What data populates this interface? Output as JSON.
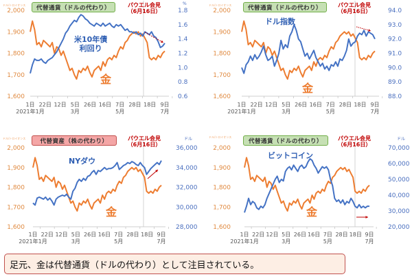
{
  "chart_data": [
    {
      "type": "line",
      "id": "gold-vs-us10y",
      "tag": "代替通貨（ドルの代わり）",
      "tag_color": "green",
      "annotation": "パウエル会見（6月16日）",
      "annotation_lines": [
        "パウエル会見",
        "（6月16日）"
      ],
      "left_unit": "ドル/トロイオンス",
      "right_unit": "%",
      "left_axis": {
        "ticks": [
          "2,000",
          "1,900",
          "1,800",
          "1,700",
          "1,600"
        ],
        "min": 1600,
        "max": 2000
      },
      "right_axis": {
        "ticks": [
          "1.8",
          "1.6",
          "1.4",
          "1.2",
          "1.0",
          "0.8",
          "0.6"
        ],
        "min": 0.6,
        "max": 1.8
      },
      "x_ticks": [
        "1日",
        "22日",
        "12日",
        "5日",
        "26日",
        "16日",
        "7日",
        "28日",
        "18日",
        "9日"
      ],
      "x_months": [
        {
          "label": "2021年1月",
          "at": 0
        },
        {
          "label": "3月",
          "at": 3
        },
        {
          "label": "5月",
          "at": 6
        },
        {
          "label": "7月",
          "at": 9
        }
      ],
      "series": [
        {
          "name": "金",
          "axis": "left",
          "color": "#ed7d31",
          "values": [
            1900,
            1950,
            1910,
            1840,
            1850,
            1830,
            1860,
            1850,
            1840,
            1830,
            1850,
            1800,
            1830,
            1820,
            1790,
            1810,
            1780,
            1750,
            1720,
            1730,
            1700,
            1680,
            1720,
            1710,
            1730,
            1720,
            1740,
            1710,
            1690,
            1720,
            1730,
            1740,
            1720,
            1760,
            1740,
            1770,
            1780,
            1770,
            1790,
            1780,
            1810,
            1830,
            1820,
            1850,
            1860,
            1880,
            1890,
            1900,
            1890,
            1900,
            1880,
            1890,
            1870,
            1850,
            1780,
            1770,
            1780,
            1770,
            1790,
            1780,
            1800,
            1810
          ]
        },
        {
          "name": "米10年債利回り",
          "axis": "right",
          "color": "#4472c4",
          "values": [
            0.92,
            1.04,
            1.12,
            1.1,
            1.1,
            1.12,
            1.08,
            1.06,
            1.1,
            1.12,
            1.14,
            1.18,
            1.22,
            1.28,
            1.34,
            1.4,
            1.48,
            1.52,
            1.58,
            1.62,
            1.66,
            1.64,
            1.7,
            1.74,
            1.72,
            1.68,
            1.66,
            1.62,
            1.6,
            1.58,
            1.62,
            1.6,
            1.58,
            1.62,
            1.58,
            1.6,
            1.62,
            1.58,
            1.56,
            1.6,
            1.58,
            1.6,
            1.56,
            1.52,
            1.54,
            1.5,
            1.5,
            1.48,
            1.5,
            1.46,
            1.48,
            1.44,
            1.5,
            1.48,
            1.46,
            1.5,
            1.44,
            1.42,
            1.36,
            1.28,
            1.3,
            1.34
          ]
        }
      ],
      "series_labels": {
        "blue": "米10年債\n利回り",
        "gold": "金"
      },
      "arrow": "down"
    },
    {
      "type": "line",
      "id": "gold-vs-dollar-index",
      "tag": "代替通貨（ドルの代わり）",
      "tag_color": "green",
      "annotation_lines": [
        "パウエル会見",
        "（6月16日）"
      ],
      "left_unit": "ドル/トロイオンス",
      "right_unit": "",
      "left_axis": {
        "ticks": [
          "2,000",
          "1,900",
          "1,800",
          "1,700",
          "1,600"
        ],
        "min": 1600,
        "max": 2000
      },
      "right_axis": {
        "ticks": [
          "94.0",
          "93.0",
          "92.0",
          "91.0",
          "90.0",
          "89.0",
          "88.0"
        ],
        "min": 88,
        "max": 94
      },
      "x_ticks": [
        "1日",
        "22日",
        "12日",
        "5日",
        "26日",
        "16日",
        "7日",
        "28日",
        "18日",
        "9日"
      ],
      "x_months": [
        {
          "label": "2021年1月",
          "at": 0
        },
        {
          "label": "3月",
          "at": 3
        },
        {
          "label": "5月",
          "at": 6
        },
        {
          "label": "7月",
          "at": 9
        }
      ],
      "series": [
        {
          "name": "金",
          "axis": "left",
          "color": "#ed7d31",
          "values": [
            1900,
            1950,
            1910,
            1840,
            1850,
            1830,
            1860,
            1850,
            1840,
            1830,
            1850,
            1800,
            1830,
            1820,
            1790,
            1810,
            1780,
            1750,
            1720,
            1730,
            1700,
            1680,
            1720,
            1710,
            1730,
            1720,
            1740,
            1710,
            1690,
            1720,
            1730,
            1740,
            1720,
            1760,
            1740,
            1770,
            1780,
            1770,
            1790,
            1780,
            1810,
            1830,
            1820,
            1850,
            1860,
            1880,
            1890,
            1900,
            1890,
            1900,
            1880,
            1890,
            1870,
            1850,
            1780,
            1770,
            1780,
            1770,
            1790,
            1780,
            1800,
            1810
          ]
        },
        {
          "name": "ドル指数",
          "axis": "right",
          "color": "#4472c4",
          "values": [
            90.0,
            89.6,
            90.2,
            90.4,
            90.8,
            90.5,
            90.9,
            90.6,
            90.8,
            91.1,
            91.5,
            90.9,
            90.5,
            90.6,
            90.8,
            90.1,
            90.5,
            91.0,
            91.9,
            91.3,
            91.6,
            91.4,
            92.2,
            92.5,
            93.0,
            92.6,
            92.0,
            91.8,
            91.3,
            90.8,
            91.0,
            90.6,
            90.9,
            91.2,
            90.7,
            90.4,
            90.1,
            90.3,
            89.9,
            90.1,
            89.8,
            90.2,
            90.1,
            90.4,
            90.1,
            90.6,
            90.5,
            90.8,
            91.2,
            92.0,
            91.5,
            91.7,
            91.8,
            92.2,
            92.4,
            92.3,
            92.6,
            92.2,
            92.5,
            92.4,
            92.3,
            92.0
          ]
        }
      ],
      "series_labels": {
        "blue": "ドル指数",
        "gold": "金"
      },
      "arrow": "flat-down"
    },
    {
      "type": "line",
      "id": "gold-vs-ny-dow",
      "tag": "代替資産（株の代わり）",
      "tag_color": "red",
      "annotation_lines": [
        "パウエル会見",
        "（6月16日）"
      ],
      "left_unit": "ドル/トロイオンス",
      "right_unit": "ドル",
      "left_axis": {
        "ticks": [
          "2,000",
          "1,900",
          "1,800",
          "1,700",
          "1,600"
        ],
        "min": 1600,
        "max": 2000
      },
      "right_axis": {
        "ticks": [
          "36,000",
          "34,000",
          "32,000",
          "30,000",
          "28,000"
        ],
        "min": 28000,
        "max": 36000
      },
      "x_ticks": [
        "1日",
        "22日",
        "12日",
        "5日",
        "26日",
        "16日",
        "7日",
        "28日",
        "18日",
        "9日"
      ],
      "x_months": [
        {
          "label": "2021年1月",
          "at": 0
        },
        {
          "label": "3月",
          "at": 3
        },
        {
          "label": "5月",
          "at": 6
        },
        {
          "label": "7月",
          "at": 9
        }
      ],
      "series": [
        {
          "name": "金",
          "axis": "left",
          "color": "#ed7d31",
          "values": [
            1900,
            1950,
            1910,
            1840,
            1850,
            1830,
            1860,
            1850,
            1840,
            1830,
            1850,
            1800,
            1830,
            1820,
            1790,
            1810,
            1780,
            1750,
            1720,
            1730,
            1700,
            1680,
            1720,
            1710,
            1730,
            1720,
            1740,
            1710,
            1690,
            1720,
            1730,
            1740,
            1720,
            1760,
            1740,
            1770,
            1780,
            1770,
            1790,
            1780,
            1810,
            1830,
            1820,
            1850,
            1860,
            1880,
            1890,
            1900,
            1890,
            1900,
            1880,
            1890,
            1870,
            1850,
            1780,
            1770,
            1780,
            1770,
            1790,
            1780,
            1800,
            1810
          ]
        },
        {
          "name": "NYダウ",
          "axis": "right",
          "color": "#4472c4",
          "values": [
            30400,
            30200,
            30900,
            31000,
            30900,
            30800,
            31000,
            30700,
            30900,
            30600,
            30200,
            30800,
            31000,
            31100,
            31200,
            31100,
            31300,
            31000,
            30800,
            31600,
            31900,
            32500,
            32800,
            32600,
            32900,
            32700,
            33100,
            33200,
            33500,
            33700,
            33300,
            33700,
            33600,
            33800,
            34000,
            33800,
            33900,
            33900,
            34000,
            34200,
            34500,
            33800,
            34000,
            34200,
            34300,
            34500,
            34400,
            34600,
            34500,
            34300,
            34200,
            34500,
            34200,
            34000,
            33300,
            33600,
            33900,
            34100,
            34300,
            34500,
            34300,
            34700
          ]
        }
      ],
      "series_labels": {
        "blue": "NYダウ",
        "gold": "金"
      },
      "arrow": "up"
    },
    {
      "type": "line",
      "id": "gold-vs-bitcoin",
      "tag": "代替通貨（ドルの代わり）",
      "tag_color": "green",
      "annotation_lines": [
        "パウエル会見",
        "（6月16日）"
      ],
      "left_unit": "ドル/トロイオンス",
      "right_unit": "ドル",
      "left_axis": {
        "ticks": [
          "2,000",
          "1,900",
          "1,800",
          "1,700",
          "1,600"
        ],
        "min": 1600,
        "max": 2000
      },
      "right_axis": {
        "ticks": [
          "70,000",
          "60,000",
          "50,000",
          "40,000",
          "30,000",
          "20,000"
        ],
        "min": 20000,
        "max": 70000
      },
      "x_ticks": [
        "1日",
        "22日",
        "12日",
        "5日",
        "26日",
        "16日",
        "7日",
        "28日",
        "18日",
        "9日"
      ],
      "x_months": [
        {
          "label": "2021年1月",
          "at": 0
        },
        {
          "label": "3月",
          "at": 3
        },
        {
          "label": "5月",
          "at": 6
        },
        {
          "label": "7月",
          "at": 9
        }
      ],
      "series": [
        {
          "name": "金",
          "axis": "left",
          "color": "#ed7d31",
          "values": [
            1900,
            1950,
            1910,
            1840,
            1850,
            1830,
            1860,
            1850,
            1840,
            1830,
            1850,
            1800,
            1830,
            1820,
            1790,
            1810,
            1780,
            1750,
            1720,
            1730,
            1700,
            1680,
            1720,
            1710,
            1730,
            1720,
            1740,
            1710,
            1690,
            1720,
            1730,
            1740,
            1720,
            1760,
            1740,
            1770,
            1780,
            1770,
            1790,
            1780,
            1810,
            1830,
            1820,
            1850,
            1860,
            1880,
            1890,
            1900,
            1890,
            1900,
            1880,
            1890,
            1870,
            1850,
            1780,
            1770,
            1780,
            1770,
            1790,
            1780,
            1800,
            1810
          ]
        },
        {
          "name": "ビットコイン",
          "axis": "right",
          "color": "#4472c4",
          "values": [
            29000,
            33000,
            38000,
            34000,
            36000,
            35000,
            32000,
            31000,
            33000,
            32000,
            34000,
            38000,
            41000,
            44000,
            47000,
            50000,
            52000,
            48000,
            50000,
            49000,
            55000,
            57000,
            58000,
            56000,
            59000,
            57000,
            55000,
            58000,
            59000,
            57000,
            58000,
            61000,
            63000,
            62000,
            59000,
            57000,
            54000,
            56000,
            58000,
            57000,
            58000,
            56000,
            50000,
            46000,
            38000,
            36000,
            37000,
            35000,
            37000,
            34000,
            36000,
            35000,
            38000,
            36000,
            33000,
            32000,
            34000,
            32000,
            33000,
            32000,
            33000,
            33000
          ]
        }
      ],
      "series_labels": {
        "blue": "ビットコイン",
        "gold": "金"
      },
      "arrow": "right"
    }
  ],
  "caption": "足元、金は代替通貨（ドルの代わり）として注目されている。",
  "colors": {
    "gold": "#ed7d31",
    "blue": "#4472c4",
    "annotation": "#c00000",
    "caption_bg": "#fdeee4",
    "caption_border": "#c0504d"
  }
}
